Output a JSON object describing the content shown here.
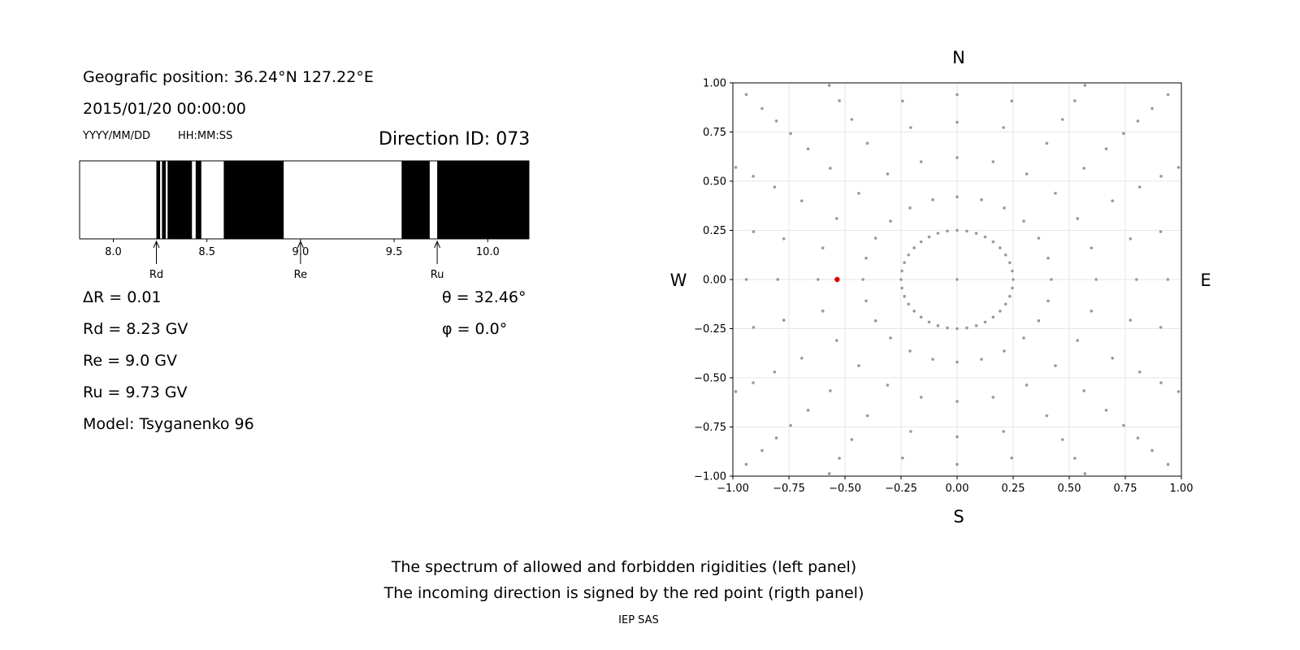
{
  "header": {
    "position": "Geografic position: 36.24°N 127.22°E",
    "datetime": "2015/01/20 00:00:00",
    "date_format": "YYYY/MM/DD",
    "time_format": "HH:MM:SS",
    "direction_id": "Direction ID: 073"
  },
  "params": {
    "delta_r": "ΔR = 0.01",
    "rd": "Rd = 8.23 GV",
    "re": "Re = 9.0 GV",
    "ru": "Ru = 9.73 GV",
    "model": "Model: Tsyganenko 96",
    "theta": "θ = 32.46°",
    "phi": "φ = 0.0°"
  },
  "footer": {
    "line1": "The spectrum of allowed and forbidden rigidities (left panel)",
    "line2": "The incoming direction is signed by the red point (rigth panel)",
    "credit": "IEP SAS"
  },
  "colors": {
    "forbidden": "#000000",
    "allowed": "#ffffff",
    "grid_point": "#999999",
    "selected_point": "#e00000"
  },
  "chart_data": [
    {
      "type": "bar",
      "name": "rigidity-spectrum",
      "xlim": [
        7.82,
        10.22
      ],
      "xticks": [
        "8.0",
        "8.5",
        "9.0",
        "9.5",
        "10.0"
      ],
      "xtick_values": [
        8.0,
        8.5,
        9.0,
        9.5,
        10.0
      ],
      "forbidden_bands": [
        [
          8.23,
          8.25
        ],
        [
          8.26,
          8.28
        ],
        [
          8.29,
          8.42
        ],
        [
          8.44,
          8.47
        ],
        [
          8.59,
          8.91
        ],
        [
          9.54,
          9.69
        ],
        [
          9.73,
          10.22
        ]
      ],
      "arrows": [
        {
          "label": "Rd",
          "value": 8.23
        },
        {
          "label": "Re",
          "value": 9.0
        },
        {
          "label": "Ru",
          "value": 9.73
        }
      ]
    },
    {
      "type": "scatter",
      "name": "incoming-directions",
      "xlim": [
        -1.0,
        1.0
      ],
      "ylim": [
        -1.0,
        1.0
      ],
      "xticks": [
        "−1.00",
        "−0.75",
        "−0.50",
        "−0.25",
        "0.00",
        "0.25",
        "0.50",
        "0.75",
        "1.00"
      ],
      "yticks": [
        "1.00",
        "0.75",
        "0.50",
        "0.25",
        "0.00",
        "−0.25",
        "−0.50",
        "−0.75",
        "−1.00"
      ],
      "tick_values": [
        -1.0,
        -0.75,
        -0.5,
        -0.25,
        0.0,
        0.25,
        0.5,
        0.75,
        1.0
      ],
      "grid": true,
      "compass": {
        "N": "N",
        "S": "S",
        "W": "W",
        "E": "E"
      },
      "pattern": {
        "center": [
          0.0,
          0.0
        ],
        "inner_ring_radius": 0.25,
        "inner_ring_count": 36,
        "ring_radii": [
          0.42,
          0.62,
          0.8,
          0.94,
          1.05,
          1.14,
          1.23,
          1.33,
          1.44
        ],
        "azimuth_count": 24,
        "azimuth_step_deg": 15
      },
      "selected_point": {
        "x": -0.535,
        "y": 0.0
      }
    }
  ]
}
